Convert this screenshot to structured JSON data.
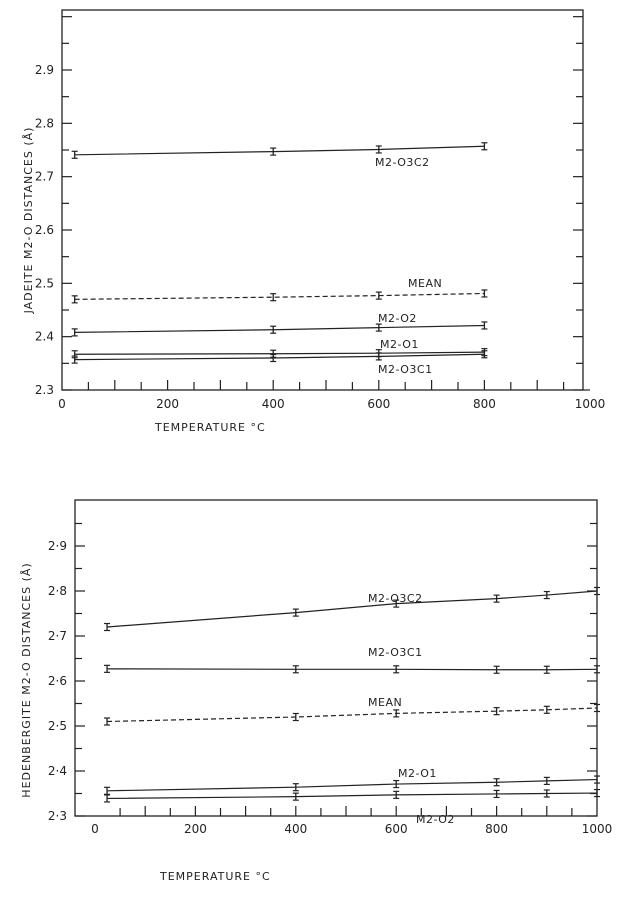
{
  "chart_data": [
    {
      "type": "line",
      "ylabel": "JADEITE  M2-O  DISTANCES (Å)",
      "xlabel": "TEMPERATURE  °C",
      "xlim": [
        0,
        1000
      ],
      "ylim": [
        2.3,
        3.0
      ],
      "xticks": [
        0,
        200,
        400,
        600,
        800,
        1000
      ],
      "xtick_labels": [
        "0",
        "200",
        "400",
        "600",
        "800",
        "1000"
      ],
      "yticks": [
        2.3,
        2.4,
        2.5,
        2.6,
        2.7,
        2.8,
        2.9
      ],
      "ytick_labels": [
        "2.3",
        "2.4",
        "2.5",
        "2.6",
        "2.7",
        "2.8",
        "2.9"
      ],
      "series": [
        {
          "name": "M2-O3C2",
          "style": "solid",
          "x": [
            24,
            400,
            600,
            800
          ],
          "y": [
            2.741,
            2.747,
            2.751,
            2.757
          ]
        },
        {
          "name": "MEAN",
          "style": "dashed",
          "x": [
            24,
            400,
            600,
            800
          ],
          "y": [
            2.47,
            2.474,
            2.477,
            2.481
          ]
        },
        {
          "name": "M2-O2",
          "style": "solid",
          "x": [
            24,
            400,
            600,
            800
          ],
          "y": [
            2.408,
            2.413,
            2.417,
            2.421
          ]
        },
        {
          "name": "M2-O1",
          "style": "solid",
          "x": [
            24,
            400,
            600,
            800
          ],
          "y": [
            2.367,
            2.368,
            2.369,
            2.371
          ]
        },
        {
          "name": "M2-O3C1",
          "style": "solid",
          "x": [
            24,
            400,
            600,
            800
          ],
          "y": [
            2.357,
            2.36,
            2.363,
            2.367
          ]
        }
      ]
    },
    {
      "type": "line",
      "ylabel": "HEDENBERGITE  M2-O DISTANCES (Å)",
      "xlabel": "TEMPERATURE  °C",
      "xlim": [
        0,
        1000
      ],
      "ylim": [
        2.3,
        3.0
      ],
      "xticks": [
        0,
        200,
        400,
        600,
        800,
        1000
      ],
      "xtick_labels": [
        "0",
        "200",
        "400",
        "600",
        "800",
        "1000"
      ],
      "yticks": [
        2.3,
        2.4,
        2.5,
        2.6,
        2.7,
        2.8,
        2.9
      ],
      "ytick_labels": [
        "2·3",
        "2·4",
        "2·5",
        "2·6",
        "2·7",
        "2·8",
        "2·9"
      ],
      "series": [
        {
          "name": "M2-O3C2",
          "style": "solid",
          "x": [
            24,
            400,
            600,
            800,
            900,
            1000
          ],
          "y": [
            2.72,
            2.752,
            2.772,
            2.783,
            2.791,
            2.8
          ]
        },
        {
          "name": "M2-O3C1",
          "style": "solid",
          "x": [
            24,
            400,
            600,
            800,
            900,
            1000
          ],
          "y": [
            2.627,
            2.626,
            2.626,
            2.625,
            2.625,
            2.626
          ]
        },
        {
          "name": "MEAN",
          "style": "dashed",
          "x": [
            24,
            400,
            600,
            800,
            900,
            1000
          ],
          "y": [
            2.51,
            2.52,
            2.528,
            2.533,
            2.536,
            2.54
          ]
        },
        {
          "name": "M2-O1",
          "style": "solid",
          "x": [
            24,
            400,
            600,
            800,
            900,
            1000
          ],
          "y": [
            2.356,
            2.364,
            2.371,
            2.375,
            2.378,
            2.381
          ]
        },
        {
          "name": "M2-O2",
          "style": "solid",
          "x": [
            24,
            400,
            600,
            800,
            900,
            1000
          ],
          "y": [
            2.339,
            2.343,
            2.347,
            2.349,
            2.35,
            2.351
          ]
        }
      ]
    }
  ]
}
